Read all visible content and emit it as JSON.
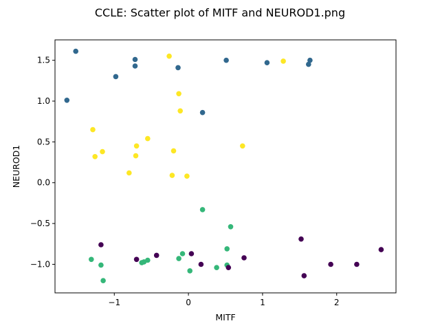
{
  "chart_data": {
    "type": "scatter",
    "title": "CCLE: Scatter plot of MITF and NEUROD1.png",
    "xlabel": "MITF",
    "ylabel": "NEUROD1",
    "xlim": [
      -1.8,
      2.8
    ],
    "ylim": [
      -1.35,
      1.75
    ],
    "xticks": [
      -1,
      0,
      1,
      2
    ],
    "yticks": [
      -1.0,
      -0.5,
      0.0,
      0.5,
      1.0,
      1.5
    ],
    "grid": false,
    "legend": "none",
    "series": [
      {
        "color": "#31688e",
        "points": [
          [
            -1.52,
            1.61
          ],
          [
            -1.64,
            1.01
          ],
          [
            -0.98,
            1.3
          ],
          [
            -0.72,
            1.51
          ],
          [
            -0.72,
            1.43
          ],
          [
            -0.14,
            1.41
          ],
          [
            0.19,
            0.86
          ],
          [
            0.51,
            1.5
          ],
          [
            1.06,
            1.47
          ],
          [
            1.62,
            1.45
          ],
          [
            1.64,
            1.5
          ]
        ]
      },
      {
        "color": "#fde725",
        "points": [
          [
            -0.26,
            1.55
          ],
          [
            -0.13,
            1.09
          ],
          [
            -0.11,
            0.88
          ],
          [
            -1.29,
            0.65
          ],
          [
            -1.26,
            0.32
          ],
          [
            -1.16,
            0.38
          ],
          [
            -0.7,
            0.45
          ],
          [
            -0.71,
            0.33
          ],
          [
            -0.55,
            0.54
          ],
          [
            -0.2,
            0.39
          ],
          [
            -0.22,
            0.09
          ],
          [
            -0.8,
            0.12
          ],
          [
            -0.02,
            0.08
          ],
          [
            0.73,
            0.45
          ],
          [
            1.28,
            1.49
          ]
        ]
      },
      {
        "color": "#35b779",
        "points": [
          [
            -1.31,
            -0.94
          ],
          [
            -1.18,
            -1.01
          ],
          [
            -1.15,
            -1.2
          ],
          [
            -0.63,
            -0.98
          ],
          [
            -0.6,
            -0.97
          ],
          [
            -0.55,
            -0.95
          ],
          [
            -0.13,
            -0.93
          ],
          [
            -0.08,
            -0.87
          ],
          [
            0.02,
            -1.08
          ],
          [
            0.19,
            -0.33
          ],
          [
            0.38,
            -1.04
          ],
          [
            0.52,
            -0.81
          ],
          [
            0.52,
            -1.01
          ],
          [
            0.57,
            -0.54
          ]
        ]
      },
      {
        "color": "#440154",
        "points": [
          [
            -1.18,
            -0.76
          ],
          [
            -0.7,
            -0.94
          ],
          [
            -0.43,
            -0.89
          ],
          [
            0.04,
            -0.87
          ],
          [
            0.17,
            -1.0
          ],
          [
            0.54,
            -1.04
          ],
          [
            0.75,
            -0.92
          ],
          [
            1.52,
            -0.69
          ],
          [
            1.56,
            -1.14
          ],
          [
            1.92,
            -1.0
          ],
          [
            2.27,
            -1.0
          ],
          [
            2.6,
            -0.82
          ]
        ]
      }
    ]
  }
}
